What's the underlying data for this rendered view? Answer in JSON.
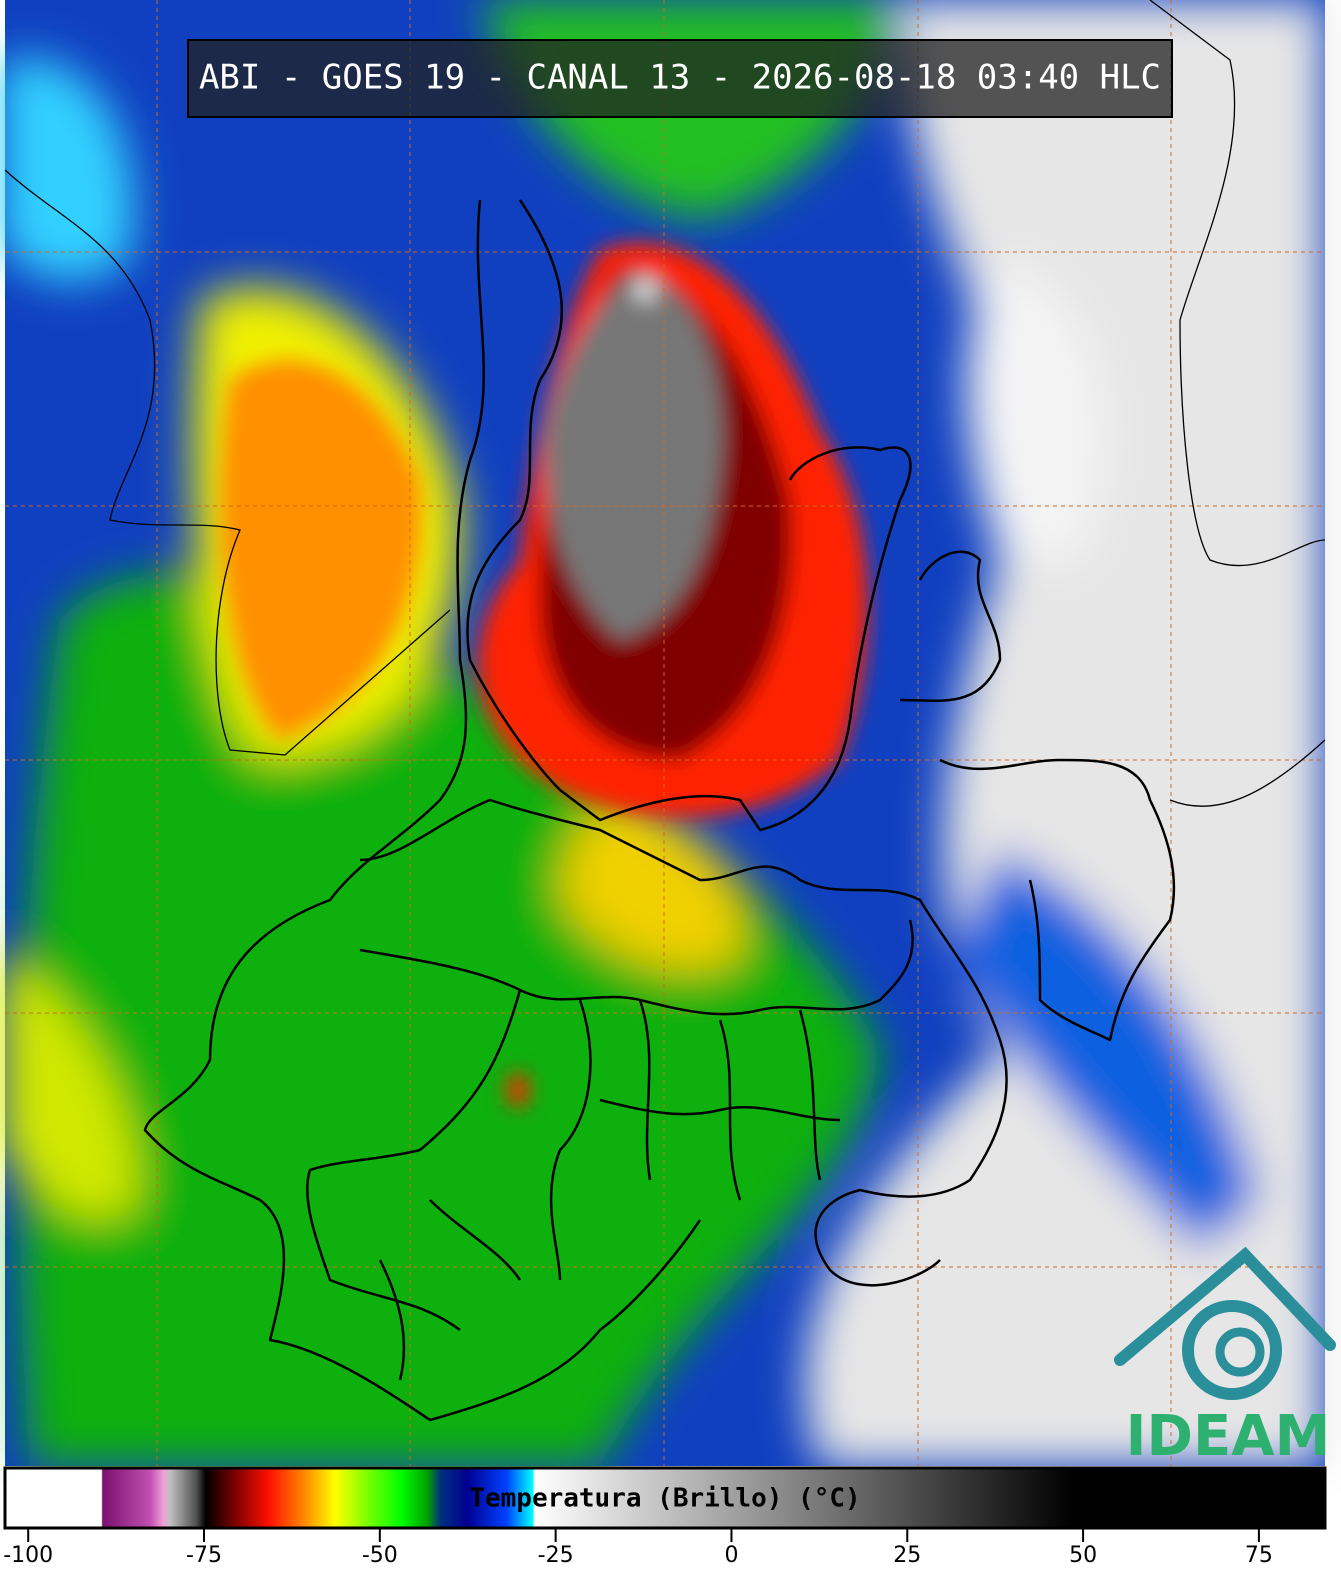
{
  "header": {
    "title": "ABI - GOES 19 - CANAL 13 - 2026-08-18 03:40 HLC"
  },
  "colorbar": {
    "label": "Temperatura (Brillo) (°C)",
    "range": [
      -103.3,
      84.4
    ],
    "ticks": [
      -100,
      -75,
      -50,
      -25,
      0,
      25,
      50,
      75
    ]
  },
  "logo": {
    "text": "IDEAM"
  }
}
